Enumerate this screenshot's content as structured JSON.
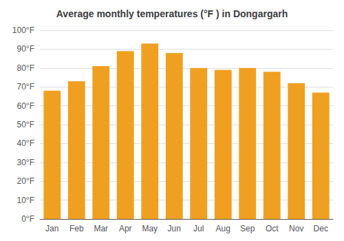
{
  "chart_data": {
    "type": "bar",
    "title": "Average monthly temperatures (°F ) in Dongargarh",
    "categories": [
      "Jan",
      "Feb",
      "Mar",
      "Apr",
      "May",
      "Jun",
      "Jul",
      "Aug",
      "Sep",
      "Oct",
      "Nov",
      "Dec"
    ],
    "values": [
      68,
      73,
      81,
      89,
      93,
      88,
      80,
      79,
      80,
      78,
      72,
      67
    ],
    "color": "#F0A020",
    "ylim": [
      0,
      100
    ],
    "yticks": [
      {
        "value": 0,
        "label": "0°F"
      },
      {
        "value": 10,
        "label": "10°F"
      },
      {
        "value": 20,
        "label": "20°F"
      },
      {
        "value": 30,
        "label": "30°F"
      },
      {
        "value": 40,
        "label": "40°F"
      },
      {
        "value": 50,
        "label": "50°F"
      },
      {
        "value": 60,
        "label": "60°F"
      },
      {
        "value": 70,
        "label": "70°F"
      },
      {
        "value": 80,
        "label": "80°F"
      },
      {
        "value": 90,
        "label": "90°F"
      },
      {
        "value": 100,
        "label": "100°F"
      }
    ],
    "grid": true
  }
}
